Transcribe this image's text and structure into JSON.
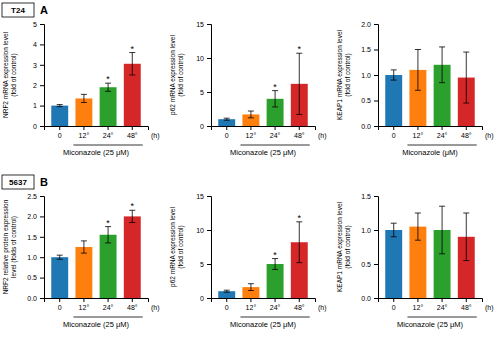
{
  "chart_data": [
    {
      "type": "bar",
      "title": "A",
      "subtitle": "T24",
      "ylabel": "NRF2 mRNA expression level\n(fold of control)",
      "xlabel": "Miconazole (25 μM)",
      "categories": [
        "0",
        "12°",
        "24°",
        "48°"
      ],
      "values": [
        1.0,
        1.35,
        1.9,
        3.05
      ],
      "errors": [
        0.05,
        0.2,
        0.2,
        0.55
      ],
      "ylim": [
        0,
        5
      ],
      "yticks": [
        0,
        1,
        2,
        3,
        4,
        5
      ],
      "annotations": [
        {
          "text": "*",
          "x": "24°"
        },
        {
          "text": "*",
          "x": "48°"
        },
        {
          "text": "(h)"
        }
      ]
    },
    {
      "type": "bar",
      "ylabel": "p62 mRNA expression level\n(fold of control)",
      "xlabel": "Miconazole (25 μM)",
      "categories": [
        "0",
        "12°",
        "24°",
        "48°"
      ],
      "values": [
        1.0,
        1.7,
        4.0,
        6.2
      ],
      "errors": [
        0.15,
        0.5,
        1.2,
        4.5
      ],
      "ylim": [
        0,
        15
      ],
      "yticks": [
        0,
        5,
        10,
        15
      ],
      "annotations": [
        {
          "text": "*",
          "x": "24°"
        },
        {
          "text": "*",
          "x": "48°"
        },
        {
          "text": "(h)"
        }
      ]
    },
    {
      "type": "bar",
      "ylabel": "KEAP1 mRNA expression level\n(fold of control)",
      "xlabel": "Miconazole (μM)",
      "categories": [
        "0",
        "12°",
        "24°",
        "48°"
      ],
      "values": [
        1.0,
        1.1,
        1.2,
        0.95
      ],
      "errors": [
        0.1,
        0.4,
        0.35,
        0.5
      ],
      "ylim": [
        0,
        2.0
      ],
      "yticks": [
        {
          "value": 0.0,
          "label": "0.0"
        },
        0.5,
        {
          "value": 1.0,
          "label": "1.0"
        },
        1.5,
        {
          "value": 2.0,
          "label": "2.0"
        }
      ],
      "annotations": [
        {
          "text": "(h)"
        }
      ]
    },
    {
      "type": "bar",
      "title": "B",
      "subtitle": "5637",
      "ylabel": "NRF2 relative protein expression\nlevel (folds of control)",
      "xlabel": "Miconazole (25 μM)",
      "categories": [
        "0",
        "12°",
        "24°",
        "48°"
      ],
      "values": [
        1.0,
        1.25,
        1.55,
        2.0
      ],
      "errors": [
        0.05,
        0.15,
        0.2,
        0.15
      ],
      "ylim": [
        0,
        2.5
      ],
      "yticks": [
        {
          "value": 0,
          "label": "0.0"
        },
        0.5,
        {
          "value": 1.0,
          "label": "1.0"
        },
        1.5,
        {
          "value": 2.0,
          "label": "2.0"
        },
        2.5
      ],
      "annotations": [
        {
          "text": "*",
          "x": "24°"
        },
        {
          "text": "*",
          "x": "48°"
        },
        {
          "text": "(h)"
        }
      ]
    },
    {
      "type": "bar",
      "ylabel": "p62 mRNA expression level\n(fold of control)",
      "xlabel": "Miconazole (25 μM)",
      "categories": [
        "0",
        "12°",
        "24°",
        "48°"
      ],
      "values": [
        1.0,
        1.6,
        5.0,
        8.2
      ],
      "errors": [
        0.15,
        0.5,
        0.8,
        3.0
      ],
      "ylim": [
        0,
        15
      ],
      "yticks": [
        0,
        5,
        10,
        15
      ],
      "annotations": [
        {
          "text": "*",
          "x": "24°"
        },
        {
          "text": "*",
          "x": "48°"
        },
        {
          "text": "(h)"
        }
      ]
    },
    {
      "type": "bar",
      "ylabel": "KEAP1 mRNA expression level\n(fold of control)",
      "xlabel": "Miconazole (25 μM)",
      "categories": [
        "0",
        "12°",
        "24°",
        "48°"
      ],
      "values": [
        1.0,
        1.05,
        1.0,
        0.9
      ],
      "errors": [
        0.1,
        0.2,
        0.35,
        0.35
      ],
      "ylim": [
        0,
        1.5
      ],
      "yticks": [
        {
          "value": 0.0,
          "label": "0.0"
        },
        0.5,
        {
          "value": 1.0,
          "label": "1.0"
        },
        1.5
      ],
      "annotations": [
        {
          "text": "(h)"
        }
      ]
    }
  ]
}
